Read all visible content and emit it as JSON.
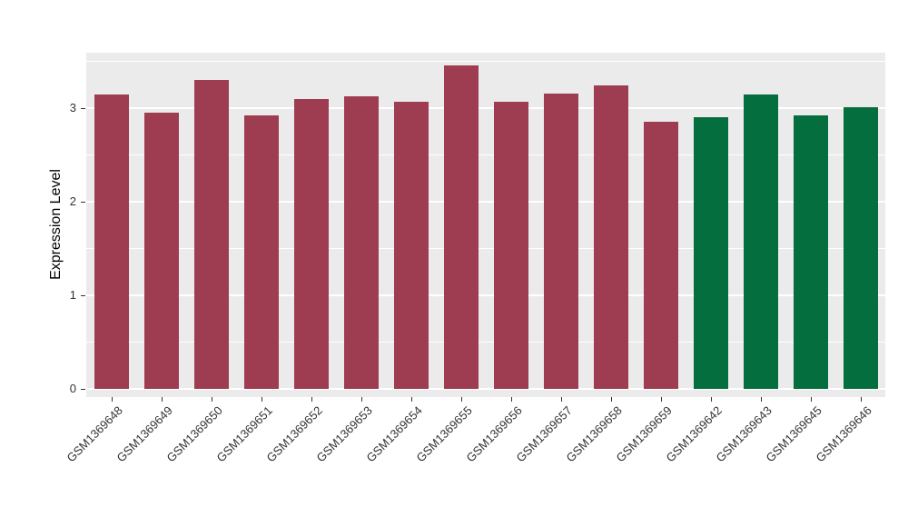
{
  "figure": {
    "background": "#FFFFFF",
    "panel_background": "#EBEBEB",
    "grid_color": "#FFFFFF",
    "axis_text_color": "#333333",
    "axis_title_color": "#000000"
  },
  "chart_data": {
    "type": "bar",
    "title": "",
    "xlabel": "",
    "ylabel": "Expression Level",
    "ylim": [
      0,
      3.6
    ],
    "yticks": [
      0,
      1,
      2,
      3
    ],
    "minor_gridlines": [
      0.5,
      1.5,
      2.5,
      3.5
    ],
    "grid": true,
    "legend": "none",
    "categories": [
      "GSM1369648",
      "GSM1369649",
      "GSM1369650",
      "GSM1369651",
      "GSM1369652",
      "GSM1369653",
      "GSM1369654",
      "GSM1369655",
      "GSM1369656",
      "GSM1369657",
      "GSM1369658",
      "GSM1369659",
      "GSM1369642",
      "GSM1369643",
      "GSM1369645",
      "GSM1369646"
    ],
    "values": [
      3.15,
      2.95,
      3.3,
      2.92,
      3.1,
      3.13,
      3.07,
      3.46,
      3.07,
      3.16,
      3.24,
      2.85,
      2.9,
      3.15,
      2.92,
      3.01
    ],
    "colors": [
      "#9E3D51",
      "#9E3D51",
      "#9E3D51",
      "#9E3D51",
      "#9E3D51",
      "#9E3D51",
      "#9E3D51",
      "#9E3D51",
      "#9E3D51",
      "#9E3D51",
      "#9E3D51",
      "#9E3D51",
      "#056E3F",
      "#056E3F",
      "#056E3F",
      "#056E3F"
    ]
  }
}
